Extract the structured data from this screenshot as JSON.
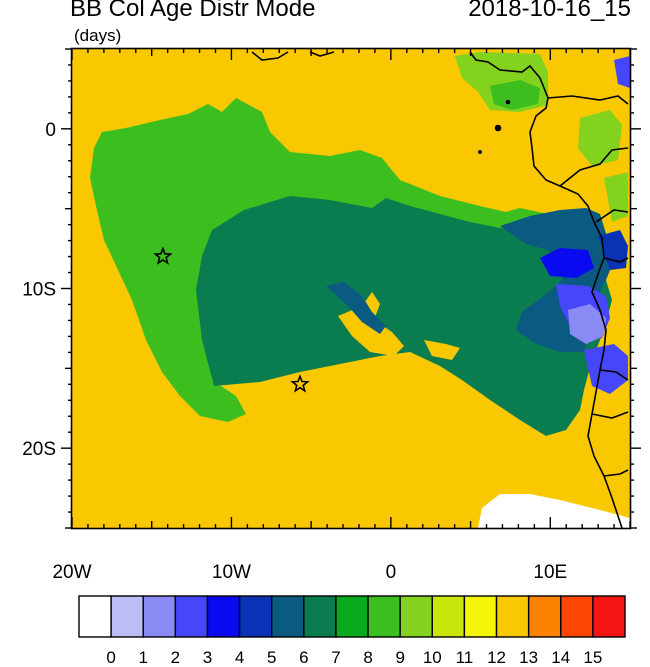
{
  "title": "BB Col Age Distr Mode",
  "timestamp": "2018-10-16_15",
  "units": "(days)",
  "map": {
    "lon_range": [
      -20,
      15
    ],
    "lat_range": [
      -25,
      5
    ],
    "x_tick_labels": [
      {
        "lon": -20,
        "text": "20W"
      },
      {
        "lon": -10,
        "text": "10W"
      },
      {
        "lon": 0,
        "text": "0"
      },
      {
        "lon": 10,
        "text": "10E"
      }
    ],
    "y_tick_labels": [
      {
        "lat": 0,
        "text": "0"
      },
      {
        "lat": -10,
        "text": "10S"
      },
      {
        "lat": -20,
        "text": "20S"
      }
    ],
    "markers": [
      {
        "name": "star-marker-west",
        "lon": -14.3,
        "lat": -8.0
      },
      {
        "name": "star-marker-south",
        "lon": -5.7,
        "lat": -16.0
      }
    ]
  },
  "colorbar": {
    "labels": [
      "0",
      "1",
      "2",
      "3",
      "4",
      "5",
      "6",
      "7",
      "8",
      "9",
      "10",
      "11",
      "12",
      "13",
      "14",
      "15"
    ],
    "colors": [
      "#ffffff",
      "#bdbdf5",
      "#8a8af5",
      "#4646fa",
      "#0a0af0",
      "#0a32b4",
      "#0a5a82",
      "#0a7d50",
      "#0aaa1e",
      "#3cbe1e",
      "#82d21e",
      "#c8e60a",
      "#f5f50a",
      "#fac800",
      "#fa8200",
      "#fa4600",
      "#f51414"
    ]
  },
  "field_colors": {
    "background": "#fac800",
    "outer_green": "#3cbe1e",
    "inner_green": "#0a7d50",
    "teal": "#0a5a82",
    "light_green": "#82d21e",
    "blue": "#0a0af0",
    "medium_blue": "#4646fa",
    "light_blue": "#8a8af5",
    "dark_blue": "#0a32b4",
    "white": "#ffffff",
    "coast": "#000000"
  }
}
